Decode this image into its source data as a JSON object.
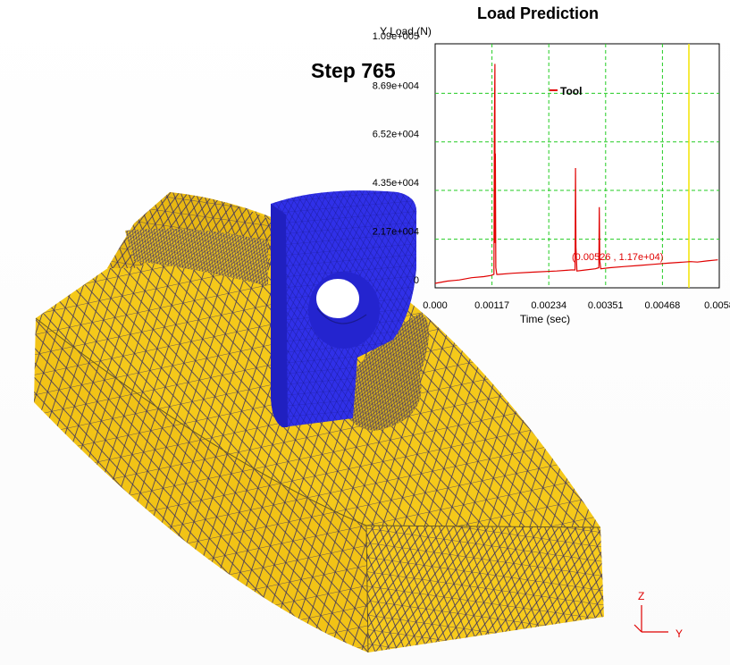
{
  "viewer": {
    "step_label": "Step  765"
  },
  "chart_data": {
    "type": "line",
    "title": "Load Prediction",
    "ylabel": "Y Load (N)",
    "xlabel": "Time (sec)",
    "ylim": [
      0,
      109000
    ],
    "xlim": [
      0,
      0.00585
    ],
    "y_ticks": [
      "0",
      "2.17e+004",
      "4.35e+004",
      "6.52e+004",
      "8.69e+004",
      "1.09e+005"
    ],
    "y_tick_values": [
      0,
      21700,
      43500,
      65200,
      86900,
      109000
    ],
    "x_ticks": [
      "0.000",
      "0.00117",
      "0.00234",
      "0.00351",
      "0.00468",
      "0.0058"
    ],
    "x_tick_values": [
      0,
      0.00117,
      0.00234,
      0.00351,
      0.00468,
      0.00585
    ],
    "grid": true,
    "legend_position": "top-center",
    "series": [
      {
        "name": "Tool",
        "color": "#e00000",
        "x": [
          0,
          0.00025,
          0.0005,
          0.00075,
          0.001,
          0.00115,
          0.00121,
          0.00122,
          0.00123,
          0.001235,
          0.00124,
          0.00125,
          0.00127,
          0.0013,
          0.0016,
          0.002,
          0.0025,
          0.0028,
          0.00288,
          0.00289,
          0.0029,
          0.00292,
          0.0031,
          0.0033,
          0.00337,
          0.00338,
          0.00339,
          0.00341,
          0.0036,
          0.0039,
          0.0042,
          0.0045,
          0.0048,
          0.00526,
          0.0054,
          0.0056,
          0.00582
        ],
        "y": [
          2000,
          3000,
          3500,
          4500,
          5000,
          5500,
          6000,
          72000,
          100000,
          20000,
          60000,
          9000,
          6000,
          6000,
          6500,
          7000,
          7500,
          8000,
          8000,
          53500,
          18000,
          7500,
          8000,
          8500,
          9000,
          36000,
          12000,
          8500,
          9000,
          9500,
          10000,
          10500,
          11000,
          11700,
          11500,
          12000,
          12500
        ]
      }
    ],
    "cursor": {
      "x": 0.00526,
      "label": "(0.00526 , 1.17e+04)"
    }
  },
  "triad": {
    "z_label": "Z",
    "y_label": "Y"
  },
  "colors": {
    "workpiece": "#f5c518",
    "workpiece_dark": "#d9a80c",
    "tool": "#2f2fe6",
    "mesh_line": "#3a3060",
    "series": "#e00000",
    "grid": "#22cc22",
    "cursor_line": "#f4e400"
  }
}
